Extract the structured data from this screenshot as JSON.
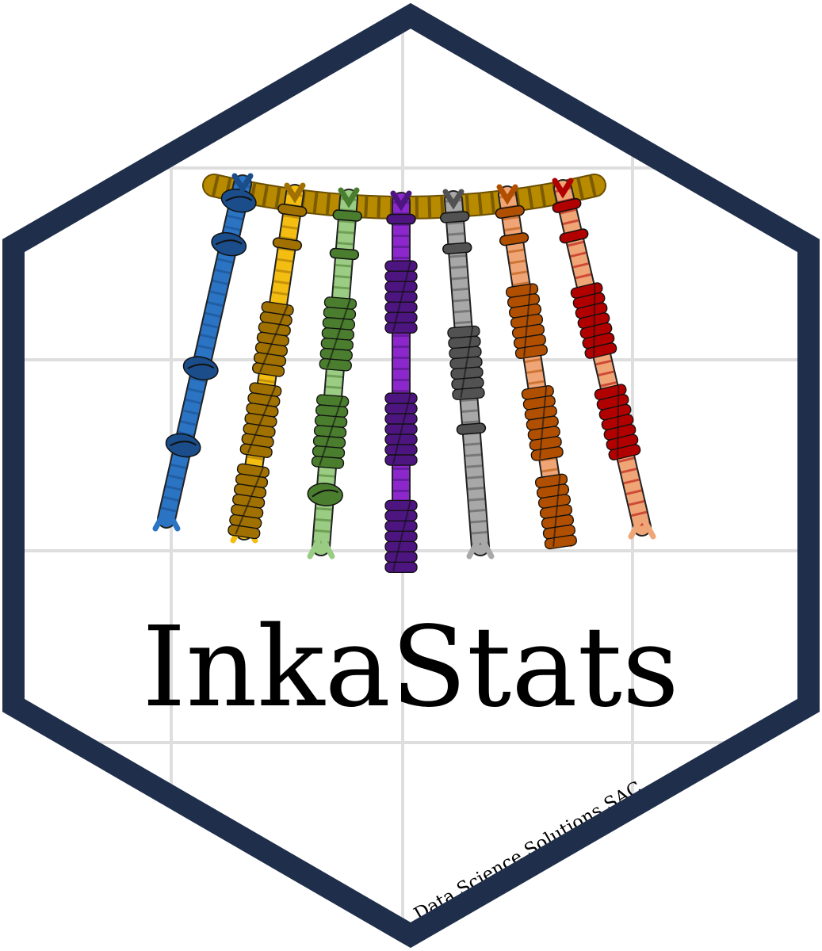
{
  "sticker": {
    "title": "InkaStats",
    "caption": "Data Science Solutions SAC",
    "border_color": "#1f2f4b",
    "background_color": "#ffffff",
    "grid_color": "#dedede"
  },
  "logo": {
    "name": "quipu-icon",
    "top_cord_color": "#b88a00",
    "cords": [
      {
        "name": "blue",
        "base": "#2b74c4",
        "dark": "#1a4d8a",
        "knots": [
          {
            "t": 0.05,
            "type": "loop"
          },
          {
            "t": 0.18,
            "type": "loop"
          },
          {
            "t": 0.55,
            "type": "loop"
          },
          {
            "t": 0.78,
            "type": "loop"
          }
        ]
      },
      {
        "name": "gold",
        "base": "#f4bd12",
        "dark": "#a07000",
        "knots": [
          {
            "t": 0.05,
            "type": "band"
          },
          {
            "t": 0.15,
            "type": "band"
          },
          {
            "t": 0.34,
            "type": "long"
          },
          {
            "t": 0.58,
            "type": "long"
          },
          {
            "t": 0.82,
            "type": "long"
          }
        ]
      },
      {
        "name": "green",
        "base": "#9bcc84",
        "dark": "#4a7d2e",
        "knots": [
          {
            "t": 0.05,
            "type": "band"
          },
          {
            "t": 0.16,
            "type": "band"
          },
          {
            "t": 0.3,
            "type": "long"
          },
          {
            "t": 0.58,
            "type": "long"
          },
          {
            "t": 0.85,
            "type": "loop"
          }
        ]
      },
      {
        "name": "purple",
        "base": "#8c27cc",
        "dark": "#4d1580",
        "knots": [
          {
            "t": 0.05,
            "type": "band"
          },
          {
            "t": 0.18,
            "type": "long"
          },
          {
            "t": 0.55,
            "type": "long"
          },
          {
            "t": 0.85,
            "type": "long"
          }
        ]
      },
      {
        "name": "gray",
        "base": "#a8a8a8",
        "dark": "#525252",
        "knots": [
          {
            "t": 0.05,
            "type": "band"
          },
          {
            "t": 0.14,
            "type": "band"
          },
          {
            "t": 0.38,
            "type": "long"
          },
          {
            "t": 0.66,
            "type": "band"
          }
        ]
      },
      {
        "name": "orange",
        "base": "#f0a577",
        "dark": "#b14f00",
        "knots": [
          {
            "t": 0.05,
            "type": "band"
          },
          {
            "t": 0.13,
            "type": "band"
          },
          {
            "t": 0.28,
            "type": "long"
          },
          {
            "t": 0.58,
            "type": "long"
          },
          {
            "t": 0.84,
            "type": "long"
          }
        ]
      },
      {
        "name": "red",
        "base": "#f0a577",
        "dark": "#b10000",
        "knots": [
          {
            "t": 0.05,
            "type": "band"
          },
          {
            "t": 0.14,
            "type": "band"
          },
          {
            "t": 0.3,
            "type": "long"
          },
          {
            "t": 0.6,
            "type": "long"
          }
        ]
      }
    ]
  }
}
